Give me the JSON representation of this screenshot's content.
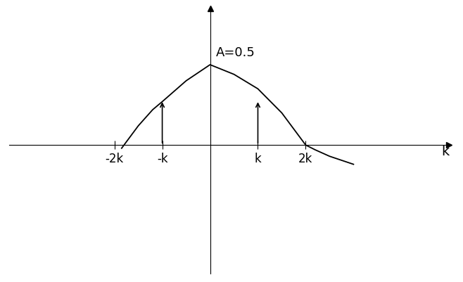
{
  "chart_data": {
    "type": "line",
    "x_label": "k",
    "xlim": [
      -4.2,
      5.0
    ],
    "ylim": [
      -0.8,
      0.85
    ],
    "xticks": [
      {
        "value": -2,
        "label": "-2k"
      },
      {
        "value": -1,
        "label": "-k"
      },
      {
        "value": 1,
        "label": "k"
      },
      {
        "value": 2,
        "label": "2k"
      }
    ],
    "tick_labels": "x",
    "color": "#000000",
    "series": [
      {
        "type": "line",
        "x": [
          -1.85,
          -1.7,
          -1.5,
          -1.2,
          -1.0,
          -0.5,
          0.0,
          0.5,
          1.0,
          1.5,
          1.9,
          2.0,
          2.2,
          2.5,
          2.8,
          3.0
        ],
        "values": [
          -0.02,
          0.04,
          0.12,
          0.22,
          0.27,
          0.4,
          0.5,
          0.44,
          0.35,
          0.2,
          0.04,
          0.0,
          -0.03,
          -0.07,
          -0.1,
          -0.12
        ]
      },
      {
        "type": "stem",
        "x": [
          -1,
          1
        ],
        "values": [
          0.28,
          0.28
        ]
      }
    ],
    "annotations": [
      {
        "text": "A=0.5",
        "x": 0,
        "y": 0.5
      }
    ]
  }
}
